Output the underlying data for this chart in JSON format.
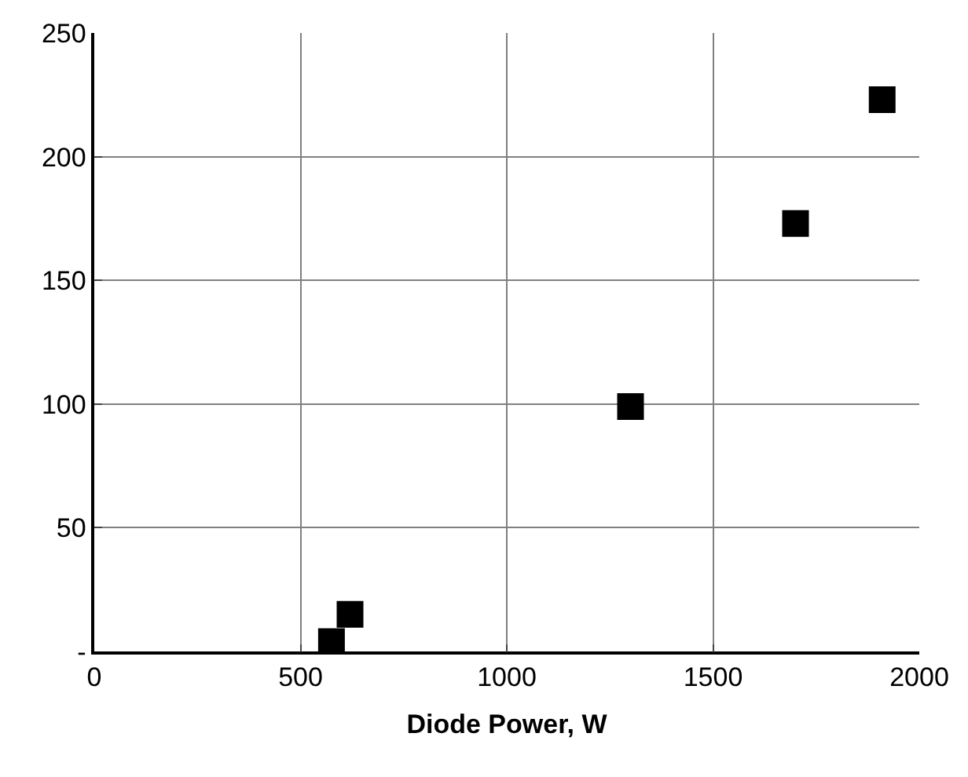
{
  "chart_data": {
    "type": "scatter",
    "xlabel": "Diode Power, W",
    "x": [
      575,
      620,
      1300,
      1700,
      1910
    ],
    "series": [
      {
        "color": "#000000",
        "values": [
          4,
          15,
          99,
          173,
          223
        ]
      }
    ],
    "xlim": [
      0,
      2000
    ],
    "xticks": [
      0,
      500,
      1000,
      1500,
      2000
    ],
    "ylim": [
      0,
      250
    ],
    "yticks": [
      {
        "value": 0,
        "label": "-"
      },
      50,
      100,
      150,
      200,
      250
    ],
    "grid": true,
    "marker": "square",
    "legend": false
  }
}
